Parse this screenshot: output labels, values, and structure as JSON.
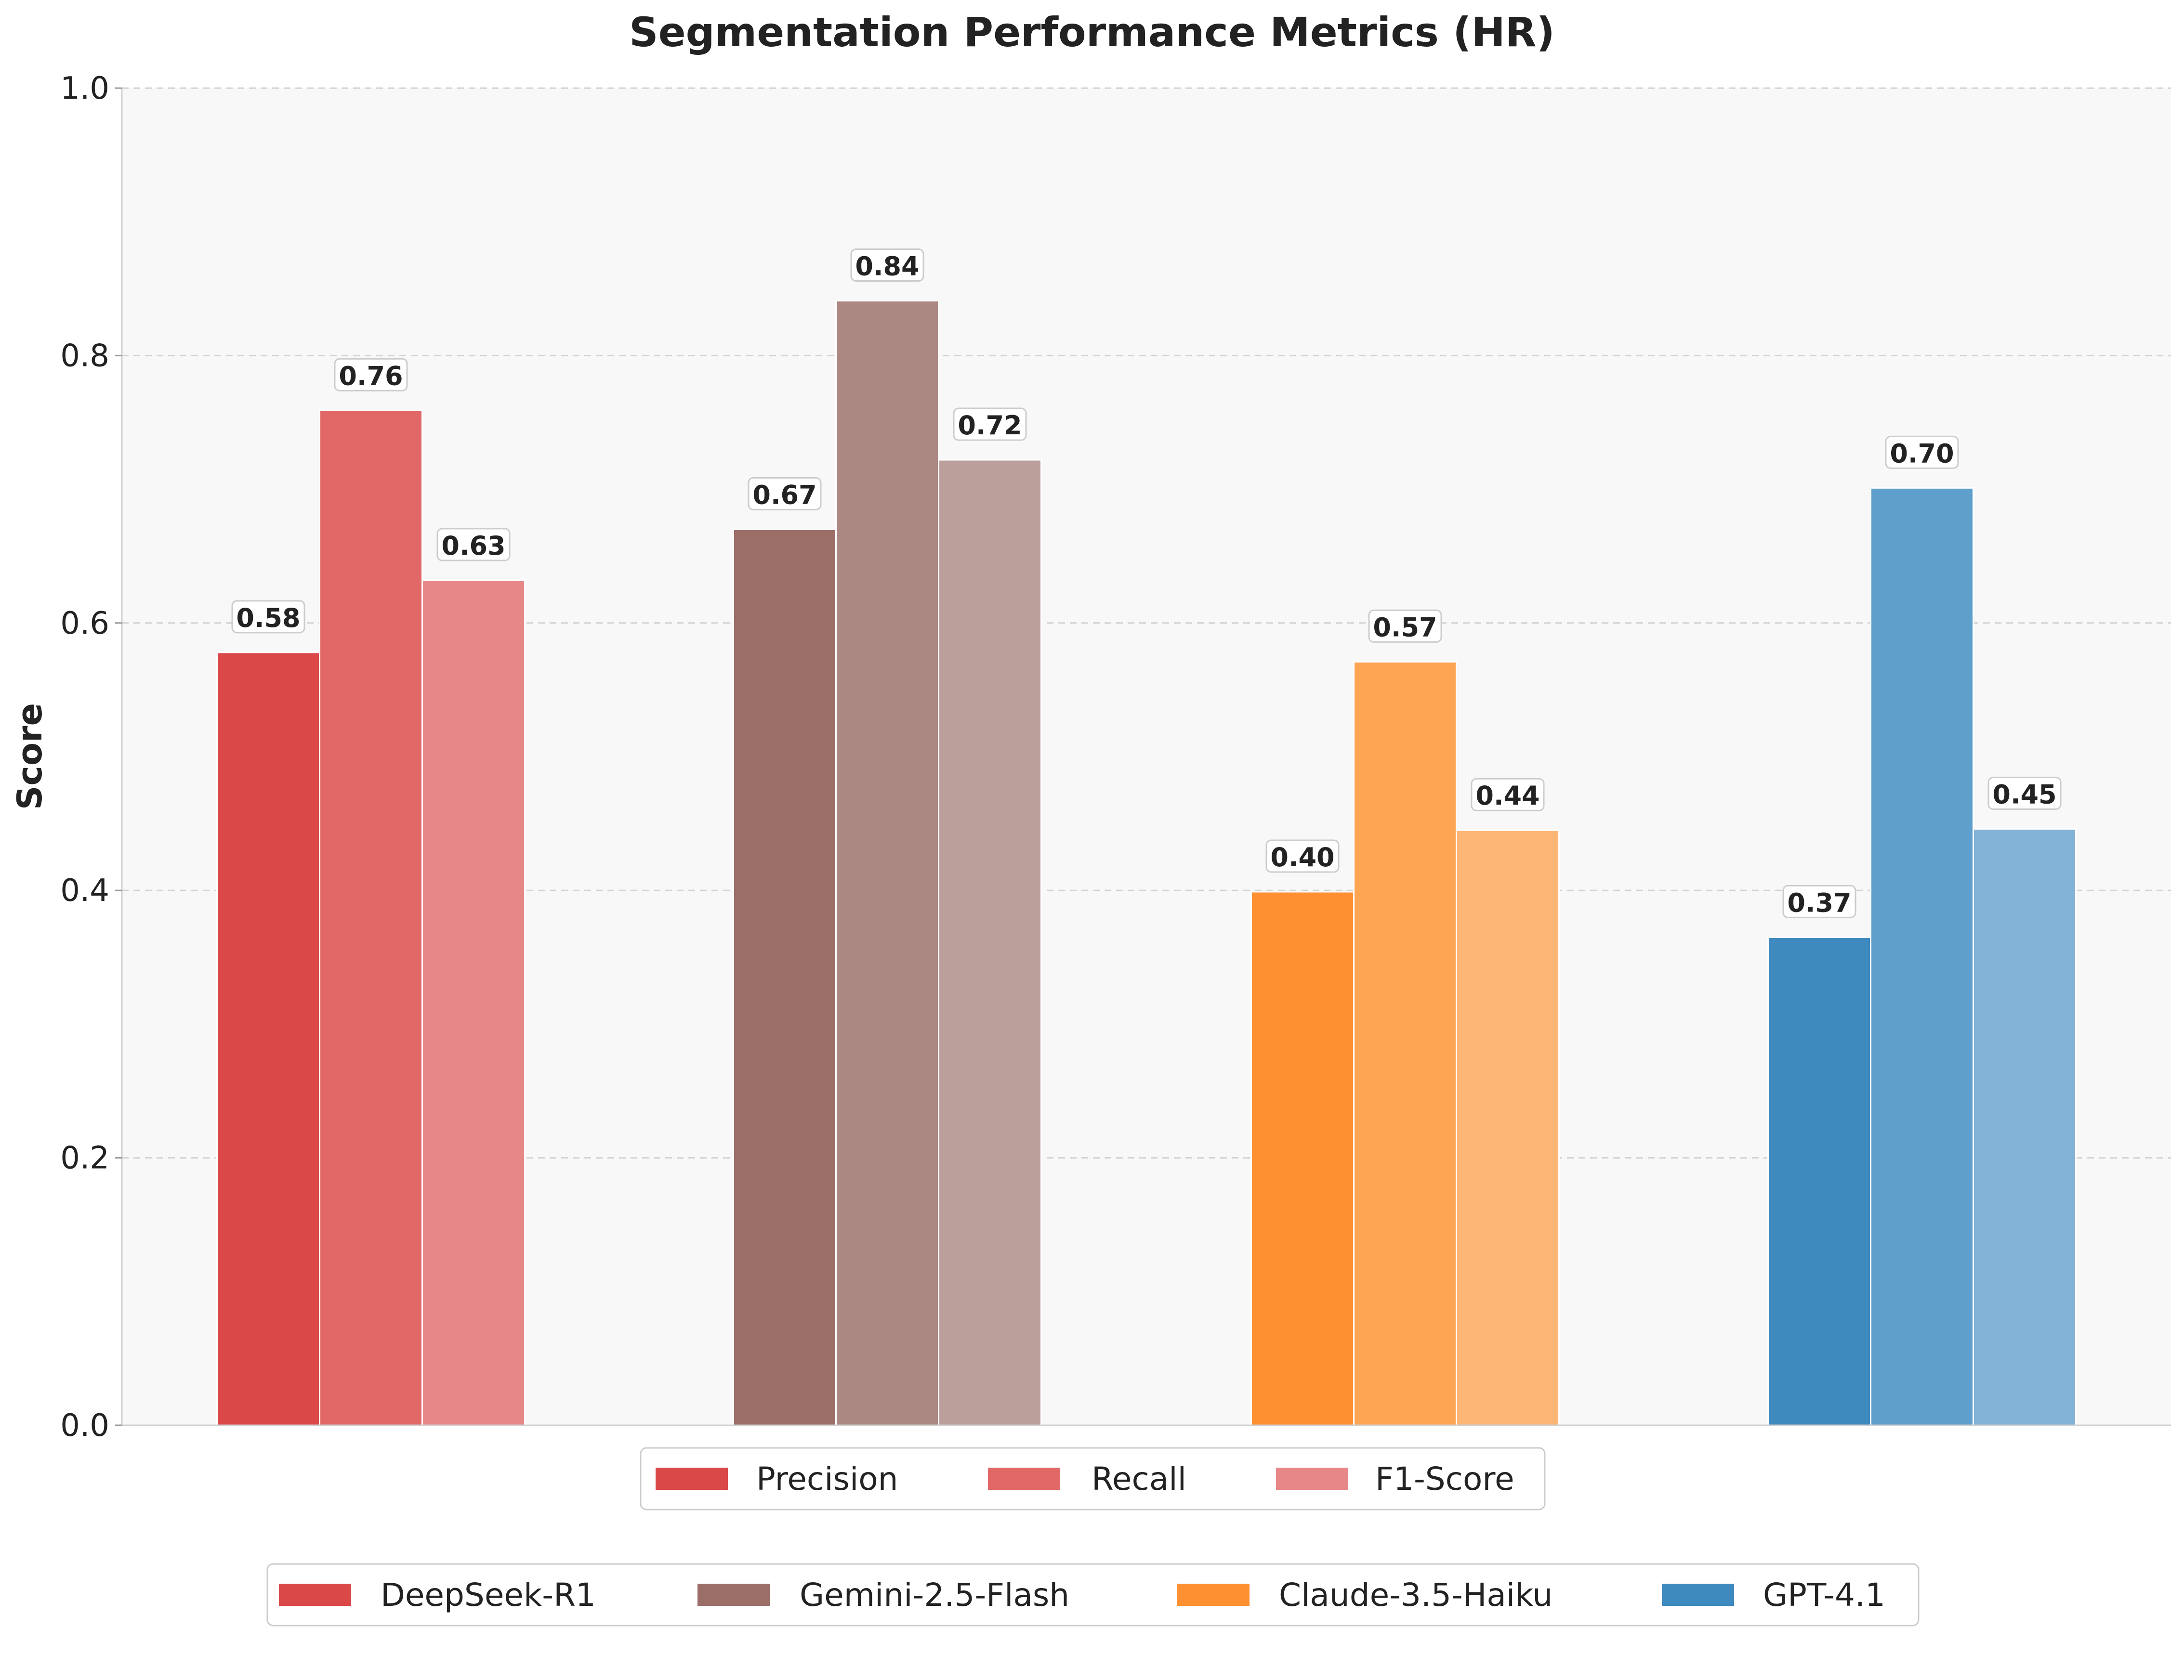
{
  "chart_data": {
    "type": "bar",
    "title": "Segmentation Performance Metrics (HR)",
    "xlabel": "",
    "ylabel": "Score",
    "ylim": [
      0,
      1.0
    ],
    "yticks": [
      "0.0",
      "0.2",
      "0.4",
      "0.6",
      "0.8",
      "1.0"
    ],
    "grid": "y-dashed",
    "categories": [
      "DeepSeek-R1",
      "Gemini-2.5-Flash",
      "Claude-3.5-Haiku",
      "GPT-4.1"
    ],
    "metrics": [
      "Precision",
      "Recall",
      "F1-Score"
    ],
    "series": [
      {
        "name": "Precision",
        "values": [
          0.578,
          0.67,
          0.399,
          0.365
        ],
        "labels": [
          "0.58",
          "0.67",
          "0.40",
          "0.37"
        ]
      },
      {
        "name": "Recall",
        "values": [
          0.759,
          0.841,
          0.571,
          0.701
        ],
        "labels": [
          "0.76",
          "0.84",
          "0.57",
          "0.70"
        ]
      },
      {
        "name": "F1-Score",
        "values": [
          0.632,
          0.722,
          0.445,
          0.446
        ],
        "labels": [
          "0.63",
          "0.72",
          "0.44",
          "0.45"
        ]
      }
    ],
    "colors": {
      "DeepSeek-R1": [
        "#db4848",
        "#e26868",
        "#e88787"
      ],
      "Gemini-2.5-Flash": [
        "#9b6f68",
        "#ab8882",
        "#bb9f9a"
      ],
      "Claude-3.5-Haiku": [
        "#fd9031",
        "#fea553",
        "#feb677"
      ],
      "GPT-4.1": [
        "#3e89be",
        "#5f9fcc",
        "#82b2d5"
      ]
    },
    "legend_metrics": [
      {
        "label": "Precision",
        "color": "#db4848"
      },
      {
        "label": "Recall",
        "color": "#e26868"
      },
      {
        "label": "F1-Score",
        "color": "#e88787"
      }
    ],
    "legend_models": [
      {
        "label": "DeepSeek-R1",
        "color": "#db4848"
      },
      {
        "label": "Gemini-2.5-Flash",
        "color": "#9b6f68"
      },
      {
        "label": "Claude-3.5-Haiku",
        "color": "#fd9031"
      },
      {
        "label": "GPT-4.1",
        "color": "#3e89be"
      }
    ],
    "legend_placement": "bottom-center"
  }
}
